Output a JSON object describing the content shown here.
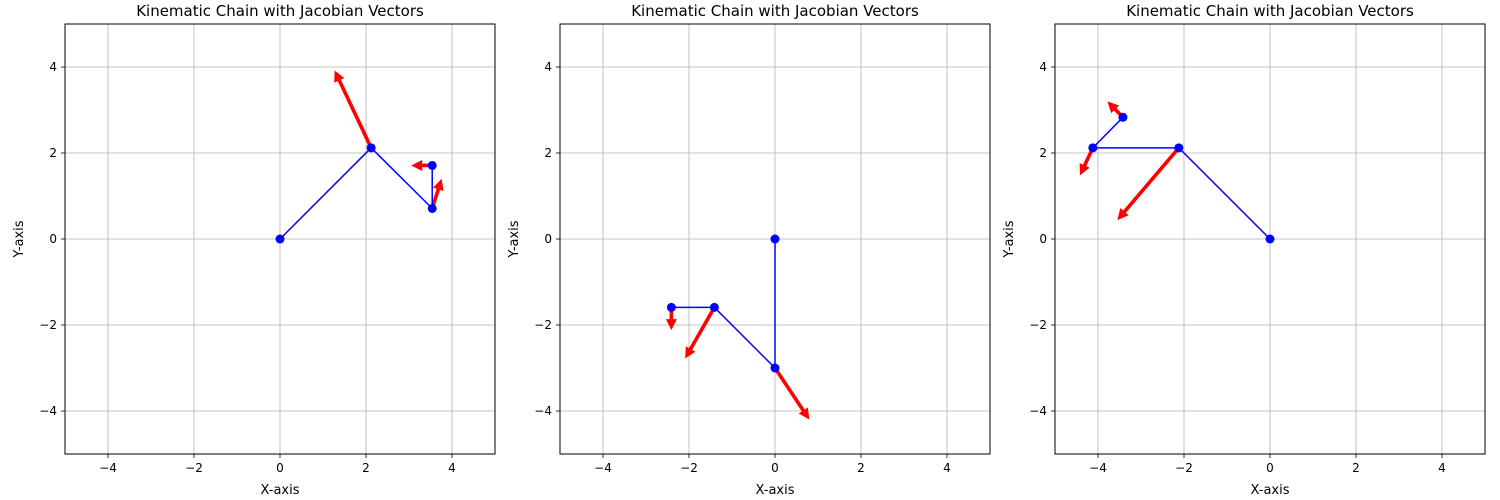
{
  "chart_data": [
    {
      "type": "kinematic-chain-quiver",
      "title": "Kinematic Chain with Jacobian Vectors",
      "xlabel": "X-axis",
      "ylabel": "Y-axis",
      "xlim": [
        -5,
        5
      ],
      "ylim": [
        -5,
        5
      ],
      "xticks": [
        -4,
        -2,
        0,
        2,
        4
      ],
      "yticks": [
        -4,
        -2,
        0,
        2,
        4
      ],
      "grid": true,
      "line_color": "#0000ff",
      "arrow_color": "#ff0000",
      "joints": [
        [
          0,
          0
        ],
        [
          2.12,
          2.12
        ],
        [
          3.54,
          0.71
        ],
        [
          3.54,
          1.71
        ]
      ],
      "vectors": [
        {
          "from": [
            2.12,
            2.12
          ],
          "to": [
            1.27,
            3.92
          ]
        },
        {
          "from": [
            3.54,
            0.71
          ],
          "to": [
            3.76,
            1.4
          ]
        },
        {
          "from": [
            3.54,
            1.71
          ],
          "to": [
            3.05,
            1.71
          ]
        }
      ]
    },
    {
      "type": "kinematic-chain-quiver",
      "title": "Kinematic Chain with Jacobian Vectors",
      "xlabel": "X-axis",
      "ylabel": "Y-axis",
      "xlim": [
        -5,
        5
      ],
      "ylim": [
        -5,
        5
      ],
      "xticks": [
        -4,
        -2,
        0,
        2,
        4
      ],
      "yticks": [
        -4,
        -2,
        0,
        2,
        4
      ],
      "grid": true,
      "line_color": "#0000ff",
      "arrow_color": "#ff0000",
      "joints": [
        [
          0,
          0
        ],
        [
          0,
          -3.0
        ],
        [
          -1.41,
          -1.59
        ],
        [
          -2.41,
          -1.59
        ]
      ],
      "vectors": [
        {
          "from": [
            0,
            -3.0
          ],
          "to": [
            0.8,
            -4.2
          ]
        },
        {
          "from": [
            -1.41,
            -1.59
          ],
          "to": [
            -2.09,
            -2.78
          ]
        },
        {
          "from": [
            -2.41,
            -1.59
          ],
          "to": [
            -2.41,
            -2.12
          ]
        }
      ]
    },
    {
      "type": "kinematic-chain-quiver",
      "title": "Kinematic Chain with Jacobian Vectors",
      "xlabel": "X-axis",
      "ylabel": "Y-axis",
      "xlim": [
        -5,
        5
      ],
      "ylim": [
        -5,
        5
      ],
      "xticks": [
        -4,
        -2,
        0,
        2,
        4
      ],
      "yticks": [
        -4,
        -2,
        0,
        2,
        4
      ],
      "grid": true,
      "line_color": "#0000ff",
      "arrow_color": "#ff0000",
      "joints": [
        [
          0,
          0
        ],
        [
          -2.12,
          2.12
        ],
        [
          -4.12,
          2.12
        ],
        [
          -3.42,
          2.83
        ]
      ],
      "vectors": [
        {
          "from": [
            -2.12,
            2.12
          ],
          "to": [
            -3.55,
            0.44
          ]
        },
        {
          "from": [
            -4.12,
            2.12
          ],
          "to": [
            -4.42,
            1.48
          ]
        },
        {
          "from": [
            -3.42,
            2.83
          ],
          "to": [
            -3.78,
            3.2
          ]
        }
      ]
    }
  ]
}
